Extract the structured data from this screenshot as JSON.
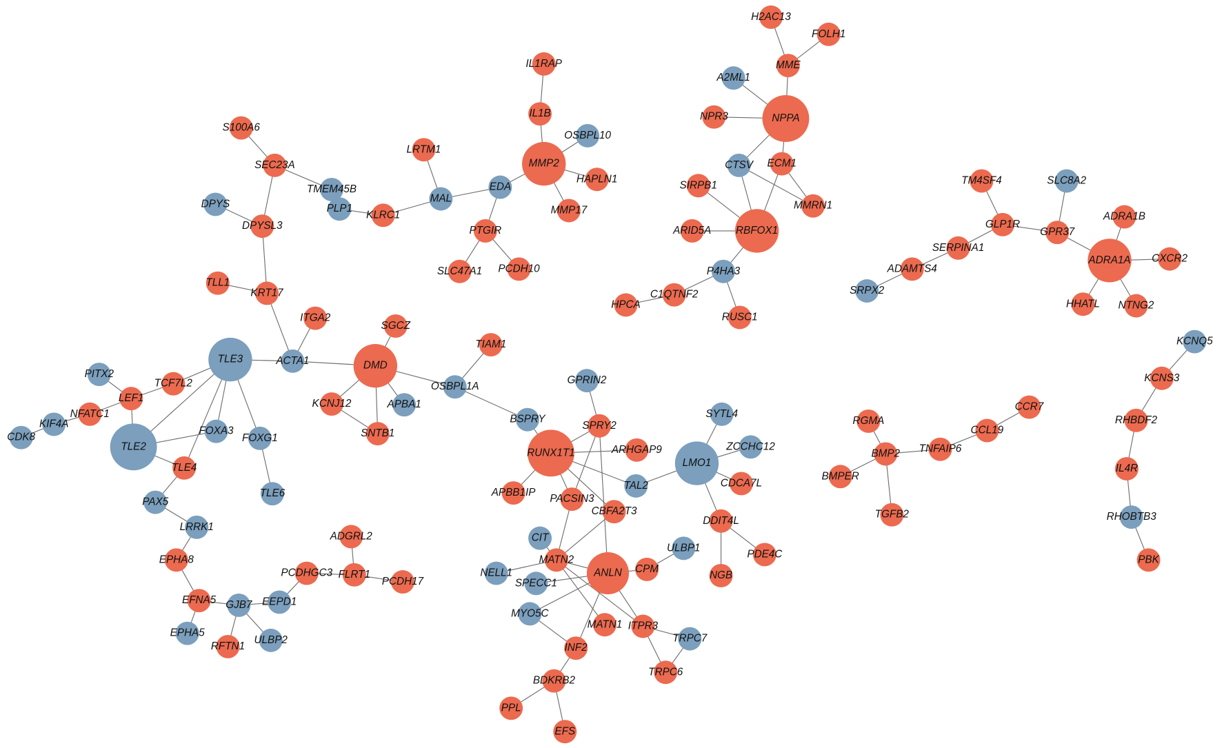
{
  "nodes": [
    {
      "label": "H2AC13",
      "color": "#ec6a4f"
    },
    {
      "label": "FOLH1",
      "color": "#ec6a4f"
    },
    {
      "label": "MME",
      "color": "#ec6a4f"
    },
    {
      "label": "A2ML1",
      "color": "#7b9fbd"
    },
    {
      "label": "NPPA",
      "color": "#ec6a4f"
    },
    {
      "label": "NPR3",
      "color": "#ec6a4f"
    },
    {
      "label": "IL1RAP",
      "color": "#ec6a4f"
    },
    {
      "label": "IL1B",
      "color": "#ec6a4f"
    },
    {
      "label": "OSBPL10",
      "color": "#7b9fbd"
    },
    {
      "label": "MMP2",
      "color": "#ec6a4f"
    },
    {
      "label": "LRTM1",
      "color": "#ec6a4f"
    },
    {
      "label": "HAPLN1",
      "color": "#ec6a4f"
    },
    {
      "label": "MMP17",
      "color": "#ec6a4f"
    },
    {
      "label": "EDA",
      "color": "#7b9fbd"
    },
    {
      "label": "MAL",
      "color": "#7b9fbd"
    },
    {
      "label": "PTGIR",
      "color": "#ec6a4f"
    },
    {
      "label": "SLC47A1",
      "color": "#ec6a4f"
    },
    {
      "label": "PCDH10",
      "color": "#ec6a4f"
    },
    {
      "label": "S100A6",
      "color": "#ec6a4f"
    },
    {
      "label": "SEC23A",
      "color": "#ec6a4f"
    },
    {
      "label": "TMEM45B",
      "color": "#7b9fbd"
    },
    {
      "label": "PLP1",
      "color": "#7b9fbd"
    },
    {
      "label": "KLRC1",
      "color": "#ec6a4f"
    },
    {
      "label": "DPYS",
      "color": "#7b9fbd"
    },
    {
      "label": "DPYSL3",
      "color": "#ec6a4f"
    },
    {
      "label": "TLL1",
      "color": "#ec6a4f"
    },
    {
      "label": "KRT17",
      "color": "#ec6a4f"
    },
    {
      "label": "ITGA2",
      "color": "#ec6a4f"
    },
    {
      "label": "ACTA1",
      "color": "#7b9fbd"
    },
    {
      "label": "TLE3",
      "color": "#7b9fbd"
    },
    {
      "label": "DMD",
      "color": "#ec6a4f"
    },
    {
      "label": "SGCZ",
      "color": "#ec6a4f"
    },
    {
      "label": "TIAM1",
      "color": "#ec6a4f"
    },
    {
      "label": "OSBPL1A",
      "color": "#7b9fbd"
    },
    {
      "label": "KCNJ12",
      "color": "#ec6a4f"
    },
    {
      "label": "APBA1",
      "color": "#7b9fbd"
    },
    {
      "label": "SNTB1",
      "color": "#ec6a4f"
    },
    {
      "label": "PITX2",
      "color": "#7b9fbd"
    },
    {
      "label": "TCF7L2",
      "color": "#ec6a4f"
    },
    {
      "label": "LEF1",
      "color": "#ec6a4f"
    },
    {
      "label": "NFATC1",
      "color": "#ec6a4f"
    },
    {
      "label": "KIF4A",
      "color": "#7b9fbd"
    },
    {
      "label": "CDK8",
      "color": "#7b9fbd"
    },
    {
      "label": "TLE2",
      "color": "#7b9fbd"
    },
    {
      "label": "FOXA3",
      "color": "#7b9fbd"
    },
    {
      "label": "FOXG1",
      "color": "#7b9fbd"
    },
    {
      "label": "TLE4",
      "color": "#ec6a4f"
    },
    {
      "label": "TLE6",
      "color": "#7b9fbd"
    },
    {
      "label": "PAX5",
      "color": "#7b9fbd"
    },
    {
      "label": "LRRK1",
      "color": "#7b9fbd"
    },
    {
      "label": "EPHA8",
      "color": "#ec6a4f"
    },
    {
      "label": "EFNA5",
      "color": "#ec6a4f"
    },
    {
      "label": "GJB7",
      "color": "#7b9fbd"
    },
    {
      "label": "EEPD1",
      "color": "#7b9fbd"
    },
    {
      "label": "EPHA5",
      "color": "#7b9fbd"
    },
    {
      "label": "RFTN1",
      "color": "#ec6a4f"
    },
    {
      "label": "ULBP2",
      "color": "#7b9fbd"
    },
    {
      "label": "PCDHGC3",
      "color": "#ec6a4f"
    },
    {
      "label": "ADGRL2",
      "color": "#ec6a4f"
    },
    {
      "label": "FLRT1",
      "color": "#ec6a4f"
    },
    {
      "label": "PCDH17",
      "color": "#ec6a4f"
    },
    {
      "label": "GPRIN2",
      "color": "#7b9fbd"
    },
    {
      "label": "BSPRY",
      "color": "#7b9fbd"
    },
    {
      "label": "SPRY2",
      "color": "#ec6a4f"
    },
    {
      "label": "RUNX1T1",
      "color": "#ec6a4f"
    },
    {
      "label": "ARHGAP9",
      "color": "#ec6a4f"
    },
    {
      "label": "SYTL4",
      "color": "#7b9fbd"
    },
    {
      "label": "ZCCHC12",
      "color": "#7b9fbd"
    },
    {
      "label": "LMO1",
      "color": "#7b9fbd"
    },
    {
      "label": "TAL2",
      "color": "#7b9fbd"
    },
    {
      "label": "CDCA7L",
      "color": "#ec6a4f"
    },
    {
      "label": "APBB1IP",
      "color": "#ec6a4f"
    },
    {
      "label": "PACSIN3",
      "color": "#ec6a4f"
    },
    {
      "label": "CBFA2T3",
      "color": "#ec6a4f"
    },
    {
      "label": "DDIT4L",
      "color": "#ec6a4f"
    },
    {
      "label": "CIT",
      "color": "#7b9fbd"
    },
    {
      "label": "ULBP1",
      "color": "#7b9fbd"
    },
    {
      "label": "MATN2",
      "color": "#ec6a4f"
    },
    {
      "label": "NELL1",
      "color": "#7b9fbd"
    },
    {
      "label": "ANLN",
      "color": "#ec6a4f"
    },
    {
      "label": "CPM",
      "color": "#ec6a4f"
    },
    {
      "label": "PDE4C",
      "color": "#ec6a4f"
    },
    {
      "label": "NGB",
      "color": "#ec6a4f"
    },
    {
      "label": "SPECC1",
      "color": "#7b9fbd"
    },
    {
      "label": "MYO5C",
      "color": "#7b9fbd"
    },
    {
      "label": "MATN1",
      "color": "#ec6a4f"
    },
    {
      "label": "ITPR3",
      "color": "#ec6a4f"
    },
    {
      "label": "TRPC7",
      "color": "#7b9fbd"
    },
    {
      "label": "INF2",
      "color": "#ec6a4f"
    },
    {
      "label": "TRPC6",
      "color": "#ec6a4f"
    },
    {
      "label": "BDKRB2",
      "color": "#ec6a4f"
    },
    {
      "label": "PPL",
      "color": "#ec6a4f"
    },
    {
      "label": "EFS",
      "color": "#ec6a4f"
    },
    {
      "label": "CTSV",
      "color": "#7b9fbd"
    },
    {
      "label": "ECM1",
      "color": "#ec6a4f"
    },
    {
      "label": "SIRPB1",
      "color": "#ec6a4f"
    },
    {
      "label": "MMRN1",
      "color": "#ec6a4f"
    },
    {
      "label": "RBFOX1",
      "color": "#ec6a4f"
    },
    {
      "label": "ARID5A",
      "color": "#ec6a4f"
    },
    {
      "label": "P4HA3",
      "color": "#7b9fbd"
    },
    {
      "label": "C1QTNF2",
      "color": "#ec6a4f"
    },
    {
      "label": "HPCA",
      "color": "#ec6a4f"
    },
    {
      "label": "RUSC1",
      "color": "#ec6a4f"
    },
    {
      "label": "TM4SF4",
      "color": "#ec6a4f"
    },
    {
      "label": "SLC8A2",
      "color": "#7b9fbd"
    },
    {
      "label": "GLP1R",
      "color": "#ec6a4f"
    },
    {
      "label": "GPR37",
      "color": "#ec6a4f"
    },
    {
      "label": "ADRA1B",
      "color": "#ec6a4f"
    },
    {
      "label": "ADRA1A",
      "color": "#ec6a4f"
    },
    {
      "label": "CXCR2",
      "color": "#ec6a4f"
    },
    {
      "label": "SERPINA1",
      "color": "#ec6a4f"
    },
    {
      "label": "ADAMTS4",
      "color": "#ec6a4f"
    },
    {
      "label": "SRPX2",
      "color": "#7b9fbd"
    },
    {
      "label": "HHATL",
      "color": "#ec6a4f"
    },
    {
      "label": "NTNG2",
      "color": "#ec6a4f"
    },
    {
      "label": "KCNQ5",
      "color": "#7b9fbd"
    },
    {
      "label": "KCNS3",
      "color": "#ec6a4f"
    },
    {
      "label": "RHBDF2",
      "color": "#ec6a4f"
    },
    {
      "label": "IL4R",
      "color": "#ec6a4f"
    },
    {
      "label": "RHOBTB3",
      "color": "#7b9fbd"
    },
    {
      "label": "PBK",
      "color": "#ec6a4f"
    },
    {
      "label": "CCR7",
      "color": "#ec6a4f"
    },
    {
      "label": "CCL19",
      "color": "#ec6a4f"
    },
    {
      "label": "TNFAIP6",
      "color": "#ec6a4f"
    },
    {
      "label": "RGMA",
      "color": "#ec6a4f"
    },
    {
      "label": "BMP2",
      "color": "#ec6a4f"
    },
    {
      "label": "BMPER",
      "color": "#ec6a4f"
    },
    {
      "label": "TGFB2",
      "color": "#ec6a4f"
    }
  ]
}
